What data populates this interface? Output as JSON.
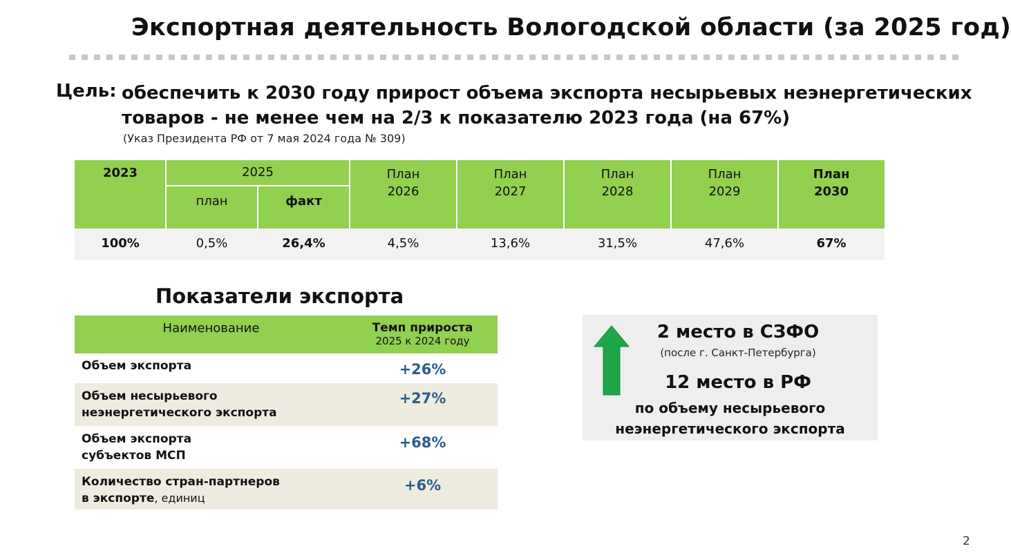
{
  "title": "Экспортная деятельность Вологодской области (за 2025 год)",
  "goal": {
    "label": "Цель:",
    "line1": "обеспечить к 2030 году прирост объема экспорта несырьевых неэнергетических",
    "line2": "товаров - не менее чем на 2/3 к показателю 2023 года (на 67%)",
    "note": "(Указ Президента РФ от 7 мая 2024 года № 309)"
  },
  "plan_table": {
    "col_2023": "2023",
    "col_2025": "2025",
    "sub_plan": "план",
    "sub_fact": "факт",
    "plans": [
      {
        "line1": "План",
        "line2": "2026"
      },
      {
        "line1": "План",
        "line2": "2027"
      },
      {
        "line1": "План",
        "line2": "2028"
      },
      {
        "line1": "План",
        "line2": "2029"
      },
      {
        "line1": "План",
        "line2": "2030"
      }
    ],
    "values": [
      "100%",
      "0,5%",
      "26,4%",
      "4,5%",
      "13,6%",
      "31,5%",
      "47,6%",
      "67%"
    ]
  },
  "indicators": {
    "title": "Показатели экспорта",
    "header_name": "Наименование",
    "header_rate_1": "Темп прироста",
    "header_rate_2": "2025 к 2024 году",
    "rows": [
      {
        "line1": "Объем экспорта",
        "line2": "",
        "unit": "",
        "value": "+26%"
      },
      {
        "line1": "Объем несырьевого",
        "line2": "неэнергетического экспорта",
        "unit": "",
        "value": "+27%"
      },
      {
        "line1": "Объем экспорта",
        "line2": "субъектов МСП",
        "unit": "",
        "value": "+68%"
      },
      {
        "line1": "Количество стран-партнеров",
        "line2": "в экспорте",
        "unit": ", единиц",
        "value": "+6%"
      }
    ]
  },
  "rank": {
    "line1": "2 место в СЗФО",
    "line2": "(после г. Санкт-Петербурга)",
    "line3": "12 место в РФ",
    "line4": "по объему несырьевого",
    "line5": "неэнергетического экспорта",
    "icon": "up-arrow-icon",
    "arrow_color": "#1fa64a"
  },
  "page_number": "2",
  "colors": {
    "header_green": "#92d050",
    "value_blue": "#2e5c8a",
    "row_beige": "#eeece1"
  }
}
